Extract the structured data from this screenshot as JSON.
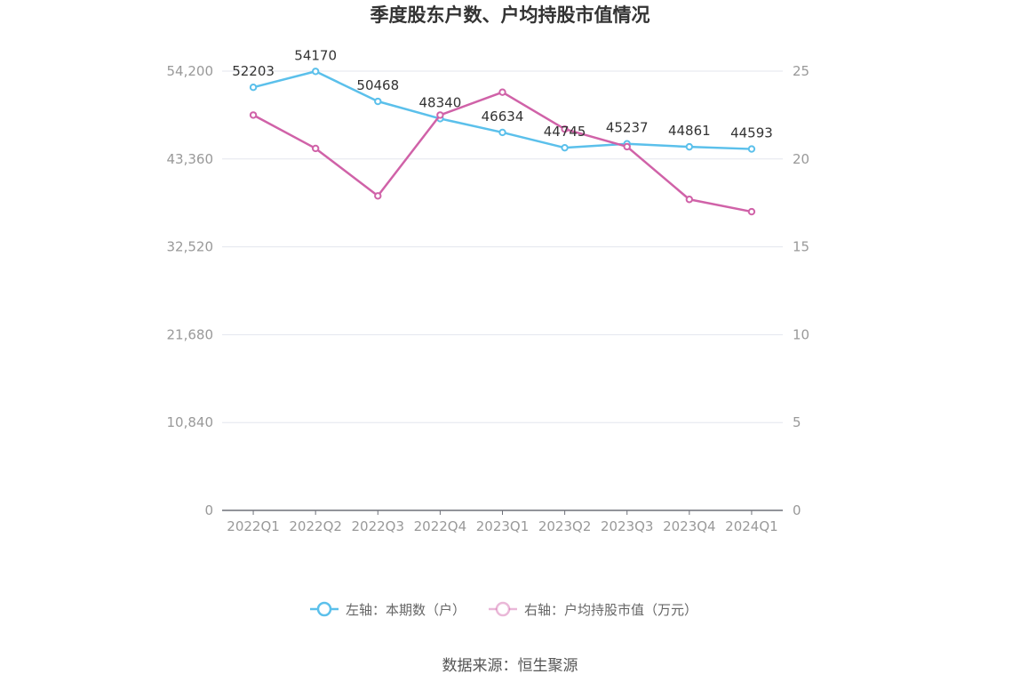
{
  "chart_data": {
    "type": "line",
    "title": "季度股东户数、户均持股市值情况",
    "categories": [
      "2022Q1",
      "2022Q2",
      "2022Q3",
      "2022Q4",
      "2023Q1",
      "2023Q2",
      "2023Q3",
      "2023Q4",
      "2024Q1"
    ],
    "left_axis": {
      "ylim": [
        0,
        54200
      ],
      "ticks": [
        0,
        10840,
        21680,
        32520,
        43360,
        54200
      ],
      "tick_labels": [
        "0",
        "10,840",
        "21,680",
        "32,520",
        "43,360",
        "54,200"
      ]
    },
    "right_axis": {
      "ylim": [
        0,
        25
      ],
      "ticks": [
        0,
        5,
        10,
        15,
        20,
        25
      ],
      "tick_labels": [
        "0",
        "5",
        "10",
        "15",
        "20",
        "25"
      ]
    },
    "series": [
      {
        "name": "左轴：本期数（户）",
        "axis": "left",
        "color": "#5bc0eb",
        "values": [
          52203,
          54170,
          50468,
          48340,
          46634,
          44745,
          45237,
          44861,
          44593
        ],
        "labels": [
          "52203",
          "54170",
          "50468",
          "48340",
          "46634",
          "44745",
          "45237",
          "44861",
          "44593"
        ]
      },
      {
        "name": "右轴：户均持股市值（万元）",
        "axis": "right",
        "color": "#d062a8",
        "values": [
          22.5,
          20.6,
          17.9,
          22.5,
          23.8,
          21.7,
          20.7,
          17.7,
          17.0
        ]
      }
    ],
    "legend_position": "bottom",
    "grid": true
  },
  "source": "数据来源：恒生聚源"
}
